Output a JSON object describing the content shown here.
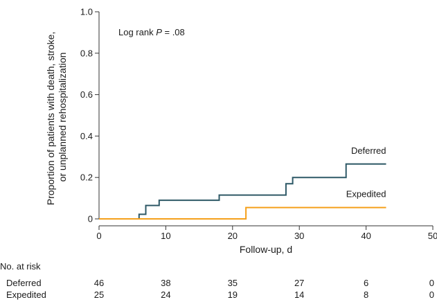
{
  "chart_data": {
    "type": "line",
    "subtype": "kaplan-meier step",
    "xlabel": "Follow-up, d",
    "ylabel_lines": [
      "Proportion of patients with death, stroke,",
      "or unplanned rehospitalization"
    ],
    "xlim": [
      0,
      50
    ],
    "ylim": [
      0,
      1.0
    ],
    "x_ticks": [
      0,
      10,
      20,
      30,
      40,
      50
    ],
    "x_tick_labels": [
      "0",
      "10",
      "20",
      "30",
      "40",
      "50"
    ],
    "y_ticks": [
      0,
      0.2,
      0.4,
      0.6,
      0.8,
      1.0
    ],
    "y_tick_labels": [
      "0",
      "0.2",
      "0.4",
      "0.6",
      "0.8",
      "1.0"
    ],
    "grid": false,
    "annotation": {
      "prefix": "Log rank ",
      "italic": "P",
      "suffix": " = .08"
    },
    "series": [
      {
        "name": "Deferred",
        "color": "#2d5866",
        "steps": [
          [
            0,
            0
          ],
          [
            6,
            0.022
          ],
          [
            7,
            0.065
          ],
          [
            9,
            0.09
          ],
          [
            18,
            0.115
          ],
          [
            28,
            0.17
          ],
          [
            29,
            0.2
          ],
          [
            37,
            0.265
          ],
          [
            43,
            0.265
          ]
        ]
      },
      {
        "name": "Expedited",
        "color": "#f5a01a",
        "steps": [
          [
            0,
            0
          ],
          [
            22,
            0.055
          ],
          [
            43,
            0.055
          ]
        ]
      }
    ],
    "risk_table": {
      "title": "No. at risk",
      "times": [
        0,
        10,
        20,
        30,
        40,
        50
      ],
      "rows": [
        {
          "label": "Deferred",
          "values": [
            "46",
            "38",
            "35",
            "27",
            "6",
            "0"
          ]
        },
        {
          "label": "Expedited",
          "values": [
            "25",
            "24",
            "19",
            "14",
            "8",
            "0"
          ]
        }
      ]
    }
  }
}
